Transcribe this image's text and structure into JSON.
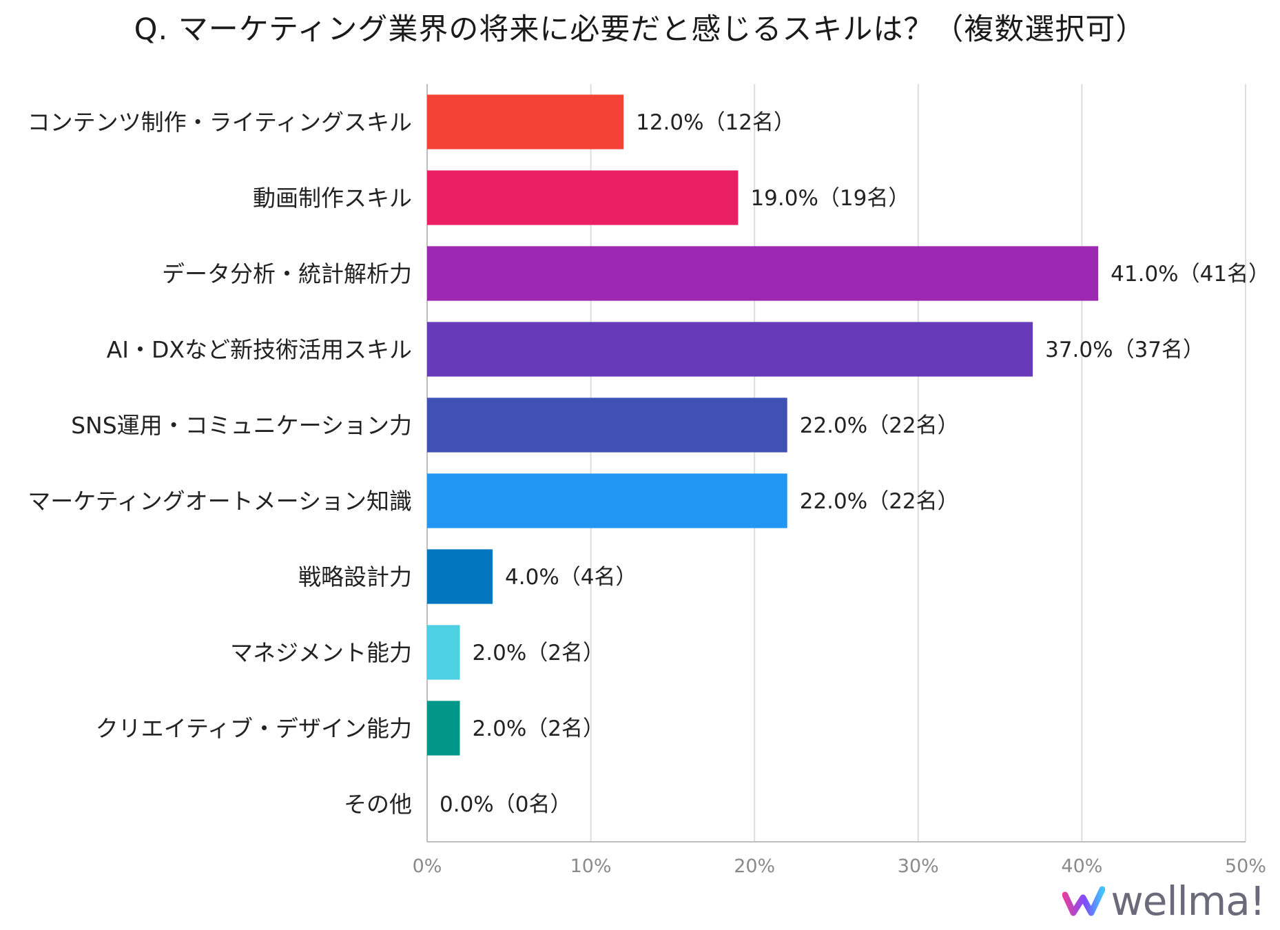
{
  "chart_data": {
    "type": "bar",
    "orientation": "horizontal",
    "title": "Q. マーケティング業界の将来に必要だと感じるスキルは？（複数選択可）",
    "categories": [
      "コンテンツ制作・ライティングスキル",
      "動画制作スキル",
      "データ分析・統計解析力",
      "AI・DXなど新技術活用スキル",
      "SNS運用・コミュニケーション力",
      "マーケティングオートメーション知識",
      "戦略設計力",
      "マネジメント能力",
      "クリエイティブ・デザイン能力",
      "その他"
    ],
    "values": [
      12.0,
      19.0,
      41.0,
      37.0,
      22.0,
      22.0,
      4.0,
      2.0,
      2.0,
      0.0
    ],
    "value_labels": [
      "12.0%（12名）",
      "19.0%（19名）",
      "41.0%（41名）",
      "37.0%（37名）",
      "22.0%（22名）",
      "22.0%（22名）",
      "4.0%（4名）",
      "2.0%（2名）",
      "2.0%（2名）",
      "0.0%（0名）"
    ],
    "colors": [
      "#f44336",
      "#e91e63",
      "#9c27b0",
      "#673ab7",
      "#3f51b5",
      "#2196f3",
      "#0277bd",
      "#4dd0e1",
      "#009688",
      "#9e9e9e"
    ],
    "x_ticks": [
      "0%",
      "10%",
      "20%",
      "30%",
      "40%",
      "50%"
    ],
    "xlim": [
      0,
      50
    ],
    "grid": true,
    "xlabel": "",
    "ylabel": ""
  },
  "brand": {
    "name": "wellma!",
    "colors": [
      "#e040a0",
      "#7c4dff",
      "#40c4ff"
    ]
  }
}
